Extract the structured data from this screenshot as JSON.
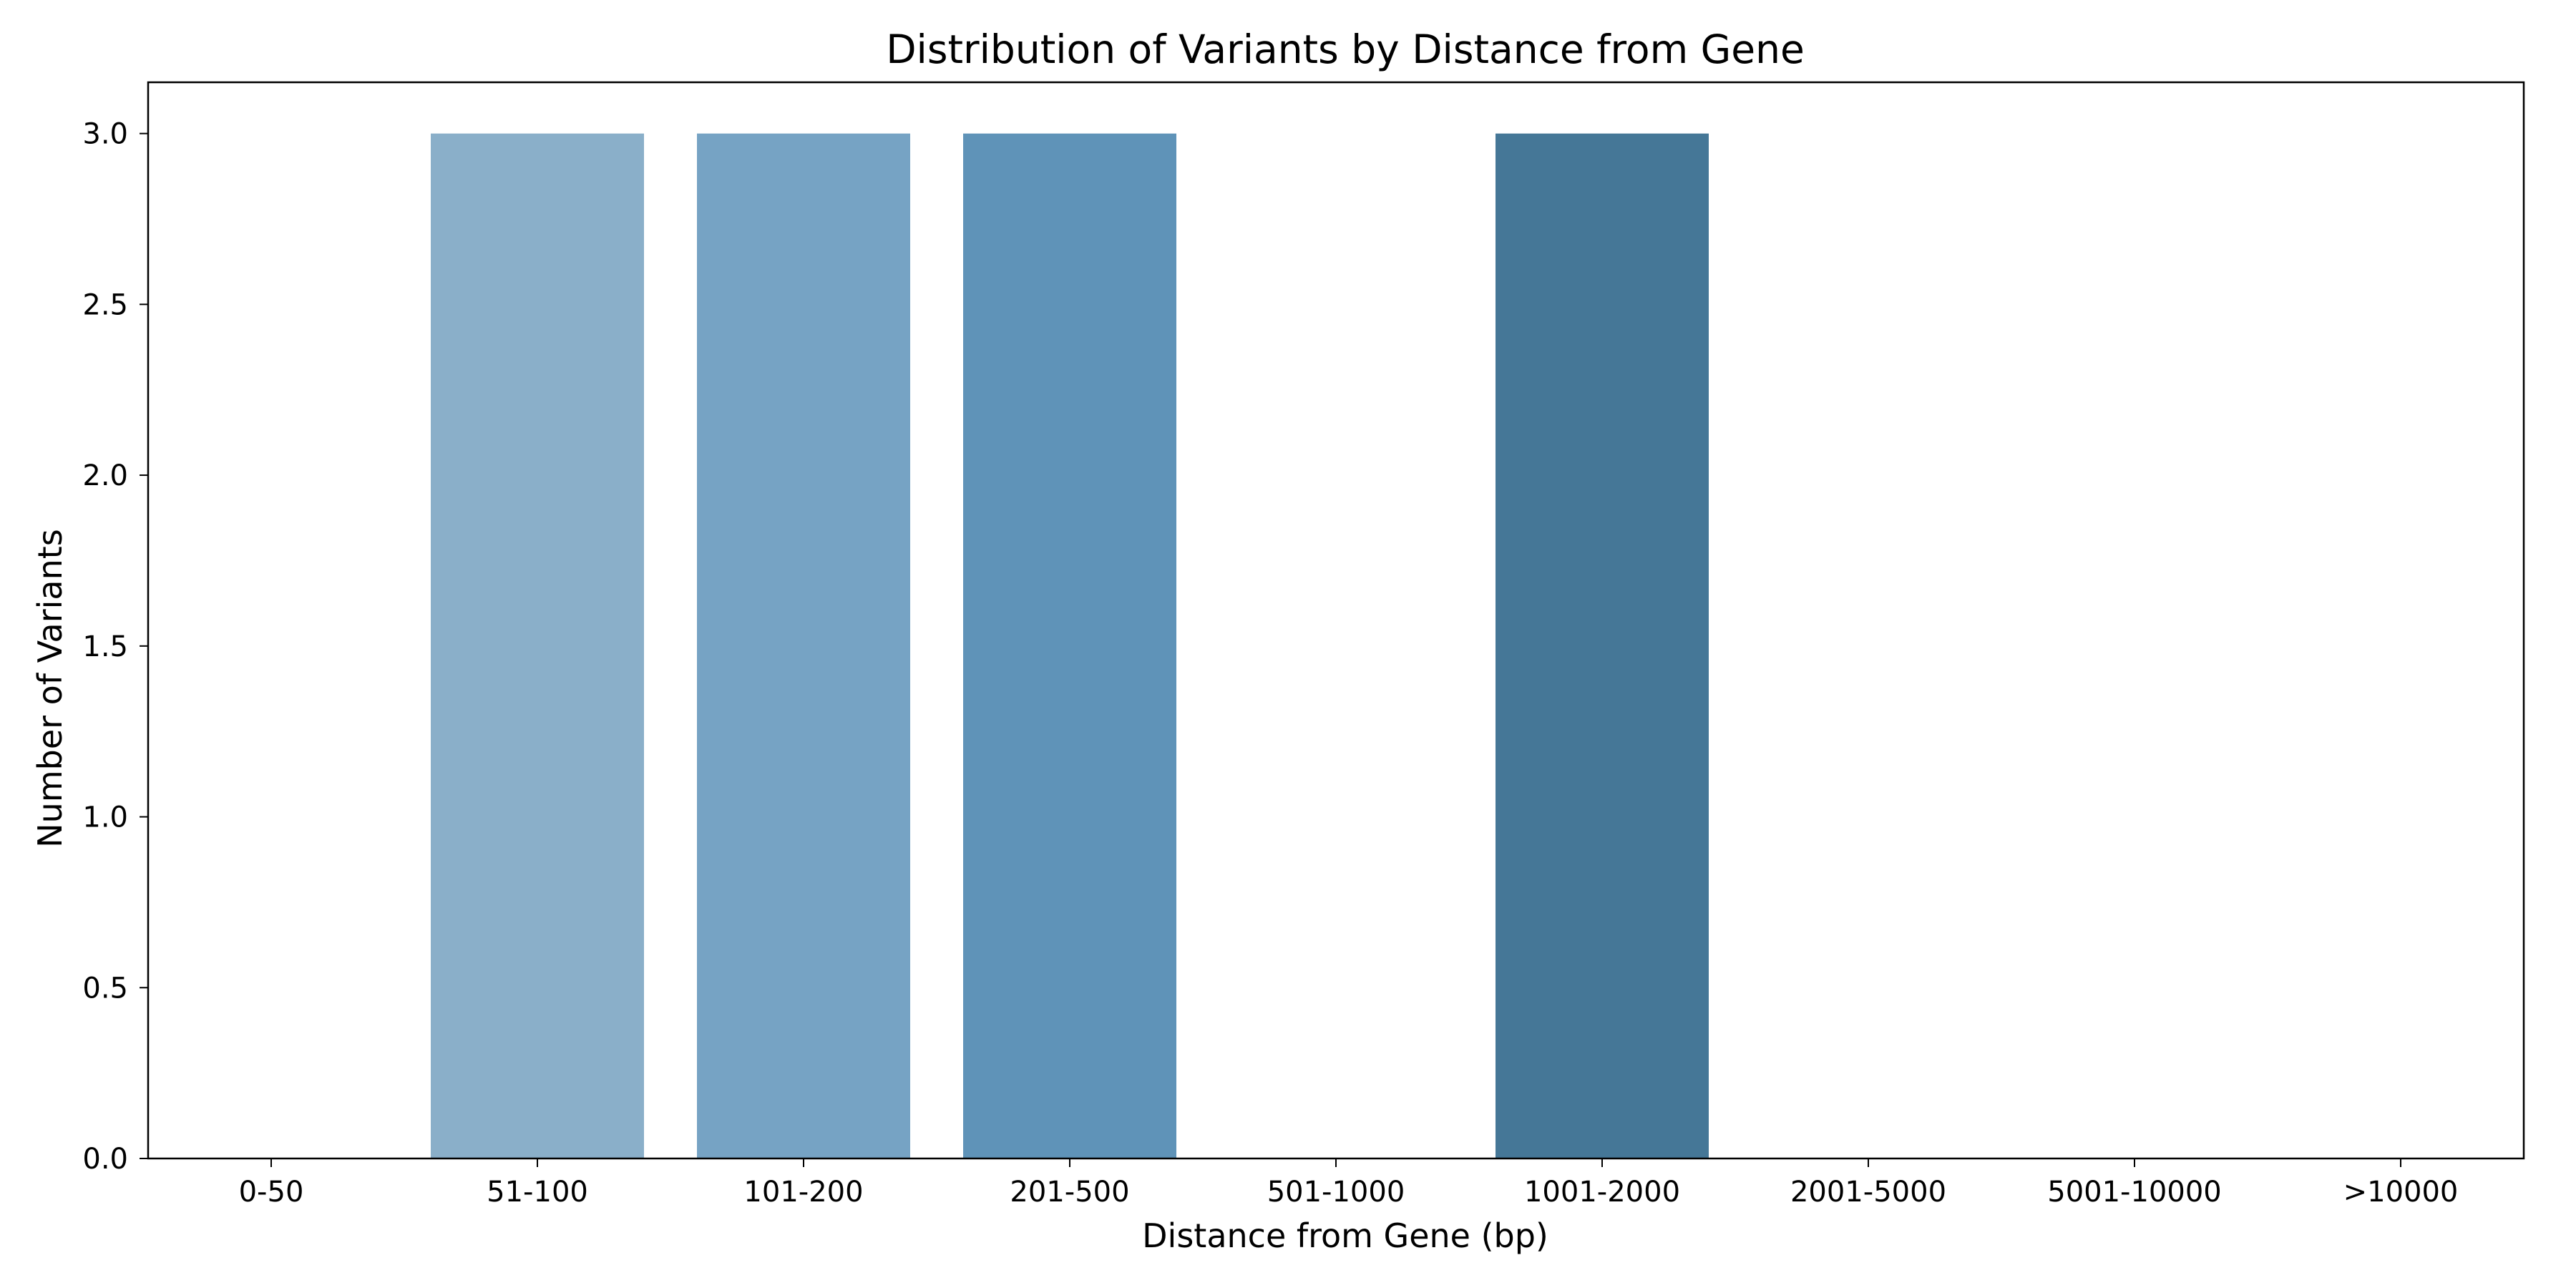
{
  "chart_data": {
    "type": "bar",
    "title": "Distribution of Variants by Distance from Gene",
    "xlabel": "Distance from Gene (bp)",
    "ylabel": "Number of Variants",
    "categories": [
      "0-50",
      "51-100",
      "101-200",
      "201-500",
      "501-1000",
      "1001-2000",
      "2001-5000",
      "5001-10000",
      ">10000"
    ],
    "values": [
      0,
      3,
      3,
      3,
      0,
      3,
      0,
      0,
      0
    ],
    "bar_colors": [
      "#8caecc",
      "#8aafc9",
      "#76a3c4",
      "#5f93b8",
      "#4f84a8",
      "#457797",
      "#3f6e8c",
      "#386482",
      "#335c78"
    ],
    "ylim": [
      0,
      3.15
    ],
    "yticks": [
      0.0,
      0.5,
      1.0,
      1.5,
      2.0,
      2.5,
      3.0
    ],
    "grid": false,
    "legend": "none"
  }
}
